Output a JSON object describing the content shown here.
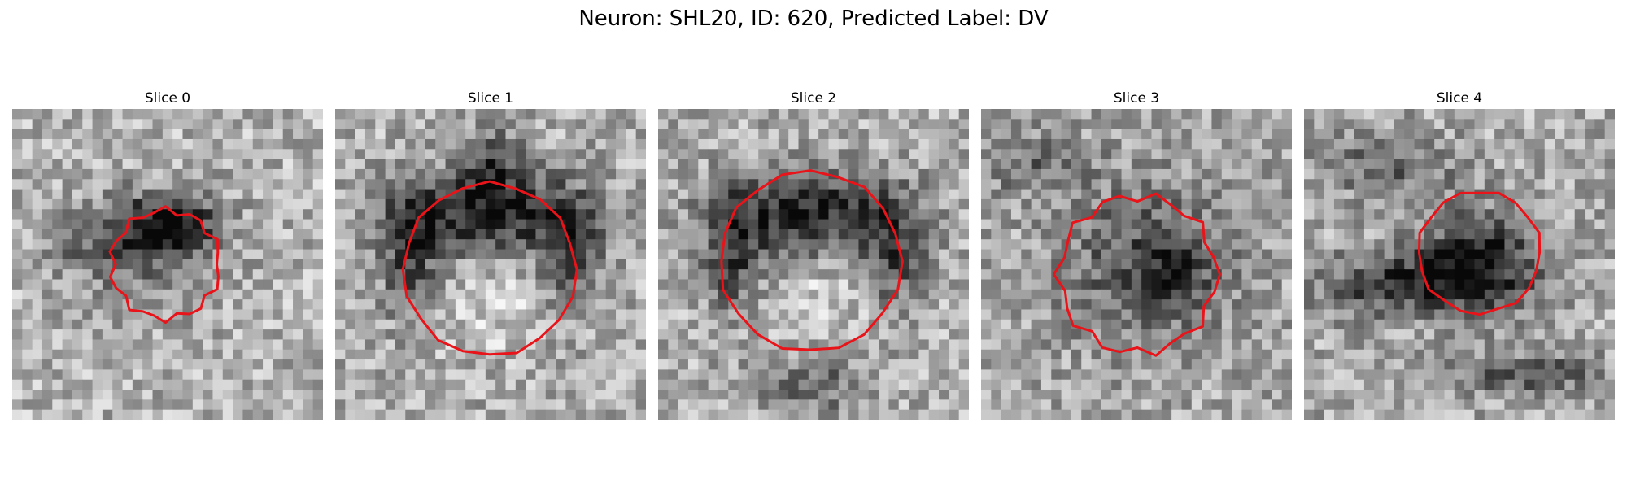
{
  "figure": {
    "title": "Neuron: SHL20, ID: 620, Predicted Label: DV"
  },
  "contour_color": "#e8141a",
  "colormap": "gray",
  "panels": [
    {
      "title": "Slice 0"
    },
    {
      "title": "Slice 1"
    },
    {
      "title": "Slice 2"
    },
    {
      "title": "Slice 3"
    },
    {
      "title": "Slice 4"
    }
  ]
}
